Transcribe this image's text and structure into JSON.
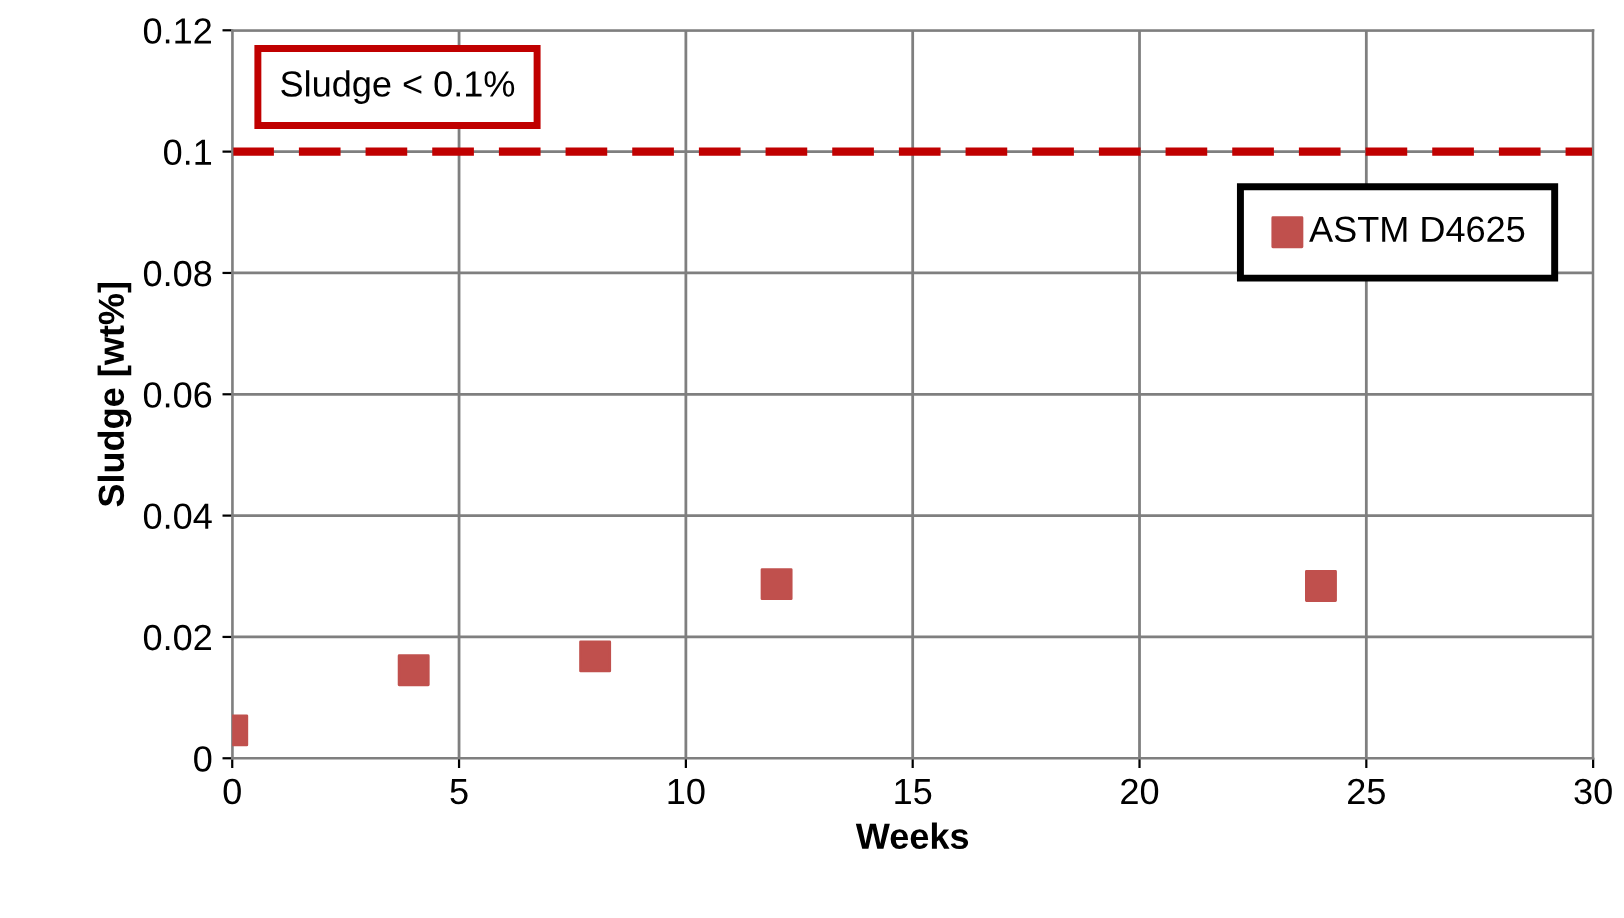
{
  "chart_data": {
    "type": "scatter",
    "xlabel": "Weeks",
    "ylabel": "Sludge [wt%]",
    "x": [
      0,
      4,
      8,
      12,
      24
    ],
    "series": [
      {
        "name": "ASTM D4625",
        "color": "#c0504d",
        "values": [
          0.0046,
          0.0145,
          0.0168,
          0.0287,
          0.0284
        ]
      }
    ],
    "xlim": [
      0,
      30
    ],
    "xticks": [
      0,
      5,
      10,
      15,
      20,
      25,
      30
    ],
    "ylim": [
      0,
      0.12
    ],
    "yticks": [
      0,
      0.02,
      0.04,
      0.06,
      0.08,
      0.1,
      0.12
    ],
    "ref_lines": [
      {
        "axis": "y",
        "value": 0.1,
        "label": "Sludge < 0.1%",
        "color": "#c00000",
        "line_style": "dashed"
      }
    ],
    "grid": true,
    "legend": "top right",
    "marker": "square"
  }
}
